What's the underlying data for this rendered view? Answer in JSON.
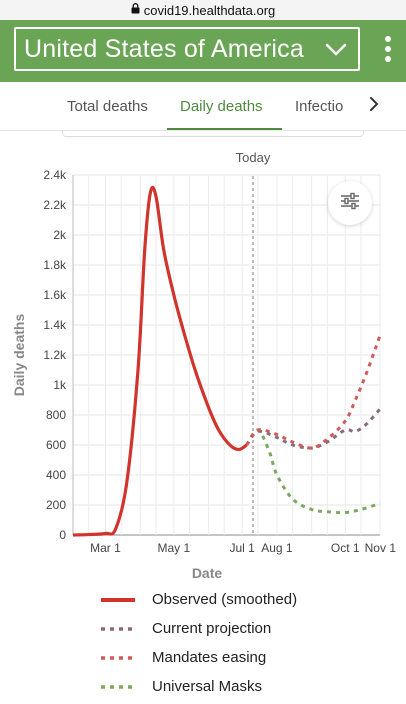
{
  "browser": {
    "url": "covid19.healthdata.org"
  },
  "header": {
    "country": "United States of America"
  },
  "tabs": [
    {
      "label": "Total deaths"
    },
    {
      "label": "Daily deaths",
      "active": true
    },
    {
      "label": "Infectio"
    }
  ],
  "chart": {
    "today_label": "Today",
    "ylabel": "Daily deaths",
    "xlabel": "Date"
  },
  "legend": [
    {
      "label": "Observed (smoothed)",
      "color": "#d0342c",
      "style": "solid"
    },
    {
      "label": "Current projection",
      "color": "#8a6a80",
      "style": "dotted"
    },
    {
      "label": "Mandates easing",
      "color": "#d05a55",
      "style": "dotted"
    },
    {
      "label": "Universal Masks",
      "color": "#7aa85f",
      "style": "dotted"
    }
  ],
  "chart_data": {
    "type": "line",
    "xlabel": "Date",
    "ylabel": "Daily deaths",
    "ylim": [
      0,
      2400
    ],
    "x_ticks": [
      "Mar 1",
      "May 1",
      "Jul 1",
      "Aug 1",
      "Oct 1",
      "Nov 1"
    ],
    "y_ticks": [
      "0",
      "200",
      "400",
      "600",
      "800",
      "1k",
      "1.2k",
      "1.4k",
      "1.6k",
      "1.8k",
      "2k",
      "2.2k",
      "2.4k"
    ],
    "today_marker": "Today",
    "grid": true,
    "series": [
      {
        "name": "Observed (smoothed)",
        "color": "#d0342c",
        "style": "solid",
        "x": [
          "Feb 1",
          "Feb 15",
          "Mar 1",
          "Mar 10",
          "Mar 20",
          "Mar 30",
          "Apr 5",
          "Apr 10",
          "Apr 15",
          "Apr 22",
          "May 1",
          "May 10",
          "May 20",
          "Jun 1",
          "Jun 10",
          "Jun 20",
          "Jun 28",
          "Jul 5"
        ],
        "y": [
          0,
          3,
          10,
          40,
          350,
          1100,
          1900,
          2280,
          2260,
          1900,
          1600,
          1350,
          1100,
          850,
          700,
          600,
          570,
          600
        ]
      },
      {
        "name": "Current projection",
        "color": "#8a6a80",
        "style": "dotted",
        "x": [
          "Jul 5",
          "Jul 15",
          "Aug 1",
          "Aug 15",
          "Sep 1",
          "Sep 15",
          "Oct 1",
          "Oct 10",
          "Oct 20",
          "Nov 1"
        ],
        "y": [
          600,
          690,
          650,
          600,
          580,
          620,
          700,
          690,
          740,
          840
        ]
      },
      {
        "name": "Mandates easing",
        "color": "#d05a55",
        "style": "dotted",
        "x": [
          "Jul 5",
          "Jul 15",
          "Aug 1",
          "Aug 15",
          "Sep 1",
          "Sep 15",
          "Oct 1",
          "Oct 10",
          "Oct 20",
          "Nov 1"
        ],
        "y": [
          600,
          700,
          670,
          620,
          580,
          640,
          760,
          900,
          1080,
          1330
        ]
      },
      {
        "name": "Universal Masks",
        "color": "#7aa85f",
        "style": "dotted",
        "x": [
          "Jul 5",
          "Jul 15",
          "Jul 25",
          "Aug 1",
          "Aug 15",
          "Sep 1",
          "Sep 15",
          "Oct 1",
          "Oct 15",
          "Nov 1"
        ],
        "y": [
          600,
          700,
          560,
          400,
          240,
          170,
          155,
          150,
          170,
          210
        ]
      }
    ]
  }
}
